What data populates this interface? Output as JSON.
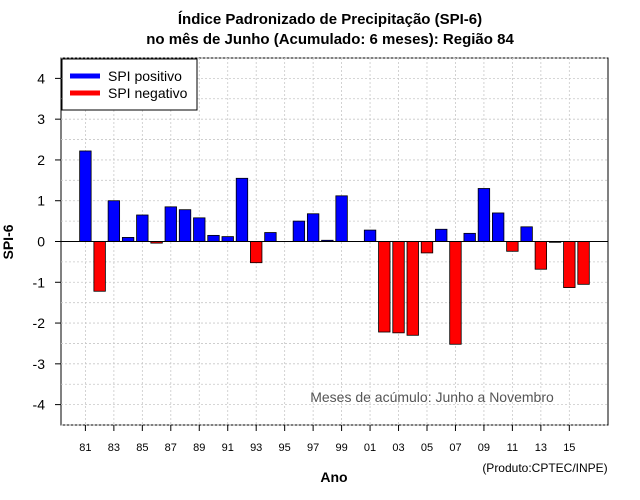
{
  "chart_data": {
    "type": "bar",
    "title_line1": "Índice Padronizado de Precipitação (SPI-6)",
    "title_line2": "no mês de Junho (Acumulado: 6 meses): Região 84",
    "xlabel": "Ano",
    "ylabel": "SPI-6",
    "ylim": [
      -4.5,
      4.5
    ],
    "yticks": [
      -4,
      -3,
      -2,
      -1,
      0,
      1,
      2,
      3,
      4
    ],
    "xtick_labels": [
      "81",
      "83",
      "85",
      "87",
      "89",
      "91",
      "93",
      "95",
      "97",
      "99",
      "01",
      "03",
      "05",
      "07",
      "09",
      "11",
      "13",
      "15"
    ],
    "categories": [
      "1981",
      "1982",
      "1983",
      "1984",
      "1985",
      "1986",
      "1987",
      "1988",
      "1989",
      "1990",
      "1991",
      "1992",
      "1993",
      "1994",
      "1995",
      "1996",
      "1997",
      "1998",
      "1999",
      "2000",
      "2001",
      "2002",
      "2003",
      "2004",
      "2005",
      "2006",
      "2007",
      "2008",
      "2009",
      "2010",
      "2011",
      "2012",
      "2013",
      "2014",
      "2015",
      "2016"
    ],
    "values": [
      2.22,
      -1.22,
      1.0,
      0.1,
      0.65,
      -0.04,
      0.85,
      0.78,
      0.58,
      0.15,
      0.12,
      1.55,
      -0.52,
      0.22,
      0.0,
      0.5,
      0.68,
      0.03,
      1.12,
      0.0,
      0.28,
      -2.22,
      -2.24,
      -2.3,
      -0.28,
      0.3,
      -2.52,
      0.2,
      1.3,
      0.7,
      -0.24,
      0.36,
      -0.68,
      -0.02,
      -1.13,
      -1.05
    ],
    "legend": [
      {
        "label": "SPI positivo",
        "color": "#0000ff"
      },
      {
        "label": "SPI negativo",
        "color": "#ff0000"
      }
    ],
    "legend_position": "top-left",
    "grid": true,
    "annotation": "Meses de acúmulo: Junho a Novembro",
    "credit": "(Produto:CPTEC/INPE)"
  }
}
